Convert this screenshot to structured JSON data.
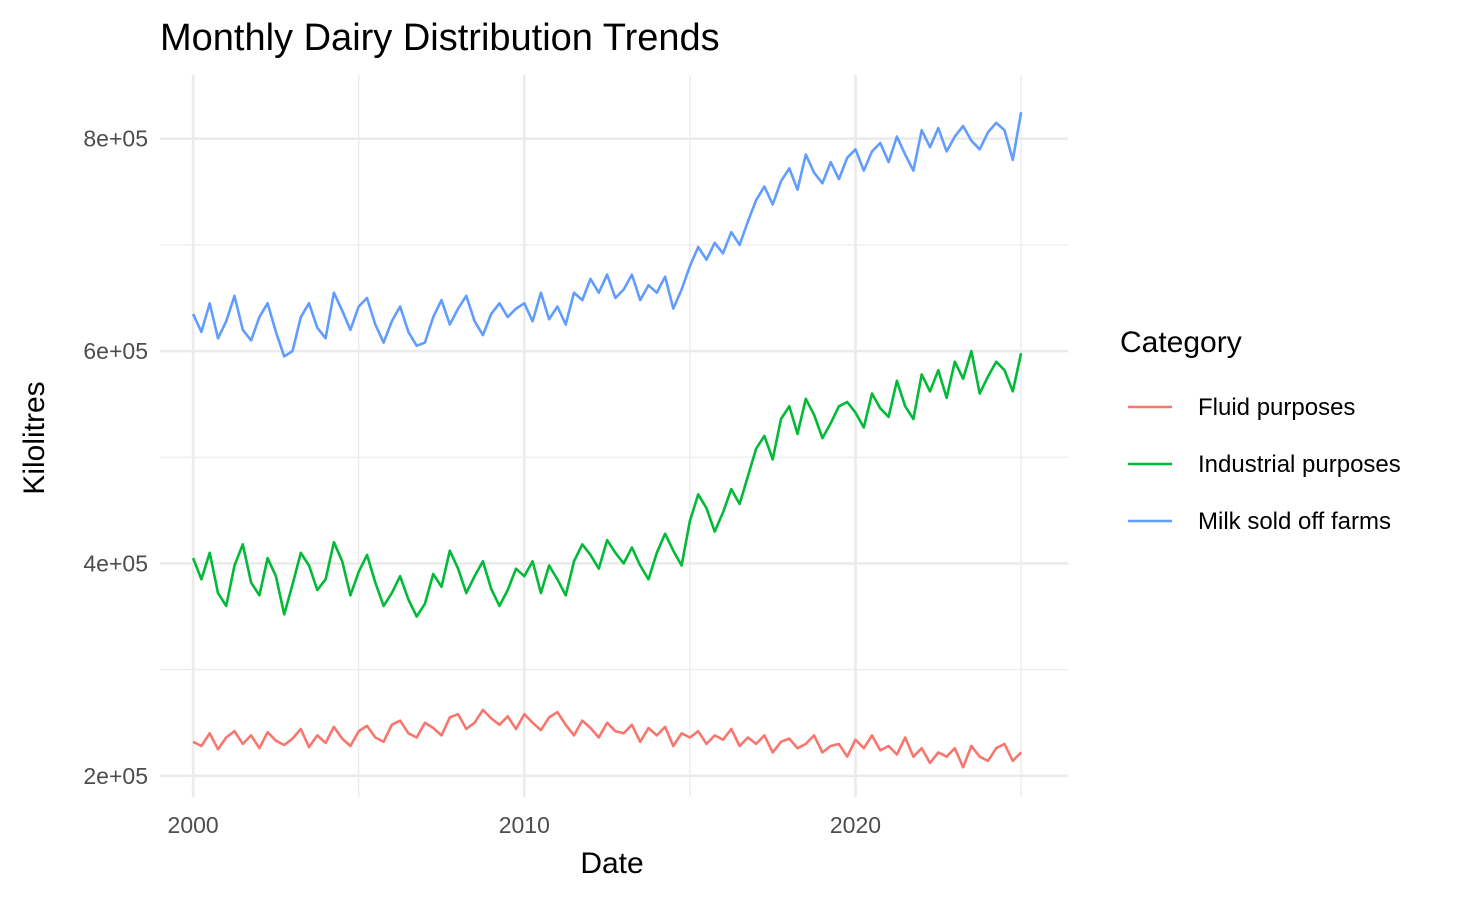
{
  "chart_data": {
    "type": "line",
    "title": "Monthly Dairy Distribution Trends",
    "xlabel": "Date",
    "ylabel": "Kilolitres",
    "xlim": [
      "1999-01-01",
      "2026-06-01"
    ],
    "ylim": [
      180000,
      860000
    ],
    "x_ticks": [
      {
        "value": "2000-01-01",
        "label": "2000"
      },
      {
        "value": "2010-01-01",
        "label": "2010"
      },
      {
        "value": "2020-01-01",
        "label": "2020"
      }
    ],
    "y_ticks": [
      {
        "value": 200000,
        "label": "2e+05"
      },
      {
        "value": 400000,
        "label": "4e+05"
      },
      {
        "value": 600000,
        "label": "6e+05"
      },
      {
        "value": 800000,
        "label": "8e+05"
      }
    ],
    "grid": true,
    "legend": {
      "title": "Category",
      "position": "right"
    },
    "x": [
      "2000-01",
      "2000-04",
      "2000-07",
      "2000-10",
      "2001-01",
      "2001-04",
      "2001-07",
      "2001-10",
      "2002-01",
      "2002-04",
      "2002-07",
      "2002-10",
      "2003-01",
      "2003-04",
      "2003-07",
      "2003-10",
      "2004-01",
      "2004-04",
      "2004-07",
      "2004-10",
      "2005-01",
      "2005-04",
      "2005-07",
      "2005-10",
      "2006-01",
      "2006-04",
      "2006-07",
      "2006-10",
      "2007-01",
      "2007-04",
      "2007-07",
      "2007-10",
      "2008-01",
      "2008-04",
      "2008-07",
      "2008-10",
      "2009-01",
      "2009-04",
      "2009-07",
      "2009-10",
      "2010-01",
      "2010-04",
      "2010-07",
      "2010-10",
      "2011-01",
      "2011-04",
      "2011-07",
      "2011-10",
      "2012-01",
      "2012-04",
      "2012-07",
      "2012-10",
      "2013-01",
      "2013-04",
      "2013-07",
      "2013-10",
      "2014-01",
      "2014-04",
      "2014-07",
      "2014-10",
      "2015-01",
      "2015-04",
      "2015-07",
      "2015-10",
      "2016-01",
      "2016-04",
      "2016-07",
      "2016-10",
      "2017-01",
      "2017-04",
      "2017-07",
      "2017-10",
      "2018-01",
      "2018-04",
      "2018-07",
      "2018-10",
      "2019-01",
      "2019-04",
      "2019-07",
      "2019-10",
      "2020-01",
      "2020-04",
      "2020-07",
      "2020-10",
      "2021-01",
      "2021-04",
      "2021-07",
      "2021-10",
      "2022-01",
      "2022-04",
      "2022-07",
      "2022-10",
      "2023-01",
      "2023-04",
      "2023-07",
      "2023-10",
      "2024-01",
      "2024-04",
      "2024-07",
      "2024-10",
      "2025-01"
    ],
    "series": [
      {
        "name": "Fluid purposes",
        "color": "#F8766D",
        "values": [
          232000,
          228000,
          240000,
          225000,
          236000,
          242000,
          230000,
          238000,
          226000,
          241000,
          233000,
          229000,
          235000,
          244000,
          227000,
          238000,
          231000,
          246000,
          235000,
          228000,
          242000,
          247000,
          236000,
          232000,
          248000,
          252000,
          240000,
          236000,
          250000,
          245000,
          238000,
          255000,
          258000,
          244000,
          250000,
          262000,
          254000,
          248000,
          256000,
          244000,
          258000,
          250000,
          243000,
          255000,
          260000,
          248000,
          238000,
          252000,
          245000,
          236000,
          250000,
          242000,
          240000,
          248000,
          232000,
          245000,
          238000,
          246000,
          228000,
          240000,
          236000,
          242000,
          230000,
          238000,
          234000,
          244000,
          228000,
          236000,
          230000,
          238000,
          222000,
          232000,
          235000,
          226000,
          230000,
          238000,
          222000,
          228000,
          230000,
          218000,
          234000,
          226000,
          238000,
          224000,
          228000,
          220000,
          236000,
          218000,
          226000,
          212000,
          222000,
          218000,
          226000,
          208000,
          228000,
          218000,
          214000,
          226000,
          230000,
          214000,
          222000
        ]
      },
      {
        "name": "Industrial purposes",
        "color": "#00BA38",
        "values": [
          405000,
          385000,
          410000,
          372000,
          360000,
          398000,
          418000,
          382000,
          370000,
          405000,
          388000,
          352000,
          380000,
          410000,
          398000,
          375000,
          385000,
          420000,
          402000,
          370000,
          392000,
          408000,
          382000,
          360000,
          372000,
          388000,
          366000,
          350000,
          362000,
          390000,
          378000,
          412000,
          395000,
          372000,
          388000,
          402000,
          376000,
          360000,
          375000,
          395000,
          388000,
          402000,
          372000,
          398000,
          385000,
          370000,
          402000,
          418000,
          408000,
          395000,
          422000,
          410000,
          400000,
          415000,
          398000,
          385000,
          410000,
          428000,
          412000,
          398000,
          440000,
          465000,
          452000,
          430000,
          448000,
          470000,
          456000,
          482000,
          508000,
          520000,
          498000,
          536000,
          548000,
          522000,
          555000,
          540000,
          518000,
          532000,
          548000,
          552000,
          542000,
          528000,
          560000,
          546000,
          538000,
          572000,
          548000,
          536000,
          578000,
          562000,
          582000,
          556000,
          590000,
          574000,
          600000,
          560000,
          576000,
          590000,
          582000,
          562000,
          598000
        ]
      },
      {
        "name": "Milk sold off farms",
        "color": "#619CFF",
        "values": [
          635000,
          618000,
          645000,
          612000,
          628000,
          652000,
          620000,
          610000,
          632000,
          645000,
          618000,
          595000,
          600000,
          632000,
          645000,
          622000,
          612000,
          655000,
          638000,
          620000,
          642000,
          650000,
          625000,
          608000,
          628000,
          642000,
          618000,
          605000,
          608000,
          632000,
          648000,
          625000,
          640000,
          652000,
          628000,
          615000,
          635000,
          645000,
          632000,
          640000,
          645000,
          628000,
          655000,
          630000,
          642000,
          625000,
          655000,
          648000,
          668000,
          655000,
          672000,
          650000,
          658000,
          672000,
          648000,
          662000,
          655000,
          670000,
          640000,
          658000,
          680000,
          698000,
          686000,
          702000,
          692000,
          712000,
          700000,
          722000,
          742000,
          755000,
          738000,
          760000,
          772000,
          752000,
          785000,
          768000,
          758000,
          778000,
          762000,
          782000,
          790000,
          770000,
          788000,
          796000,
          778000,
          802000,
          785000,
          770000,
          808000,
          792000,
          810000,
          788000,
          802000,
          812000,
          798000,
          790000,
          806000,
          815000,
          808000,
          780000,
          825000
        ]
      }
    ]
  }
}
